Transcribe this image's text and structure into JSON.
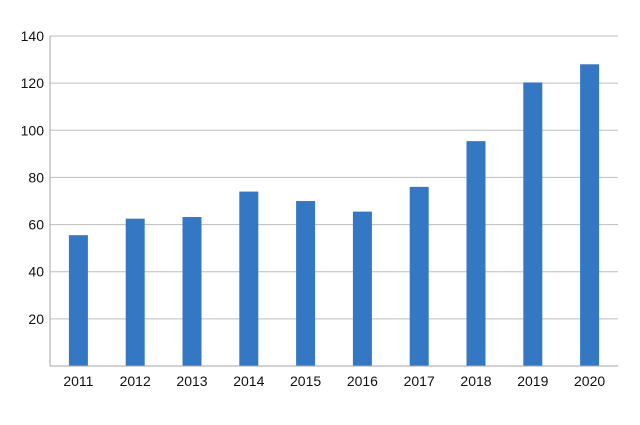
{
  "chart_data": {
    "type": "bar",
    "categories": [
      "2011",
      "2012",
      "2013",
      "2014",
      "2015",
      "2016",
      "2017",
      "2018",
      "2019",
      "2020"
    ],
    "values": [
      55.5,
      62.5,
      63.2,
      74,
      70,
      65.5,
      76,
      95.4,
      120.3,
      128
    ],
    "ylim": [
      0,
      140
    ],
    "yticks": [
      20,
      40,
      60,
      80,
      100,
      120,
      140
    ],
    "grid": "horizontal",
    "bar_color": "#3478C4",
    "grid_color": "#BDBDBD",
    "axis_color": "#A6A6A6",
    "title": "",
    "xlabel": "",
    "ylabel": "",
    "legend": "none"
  }
}
